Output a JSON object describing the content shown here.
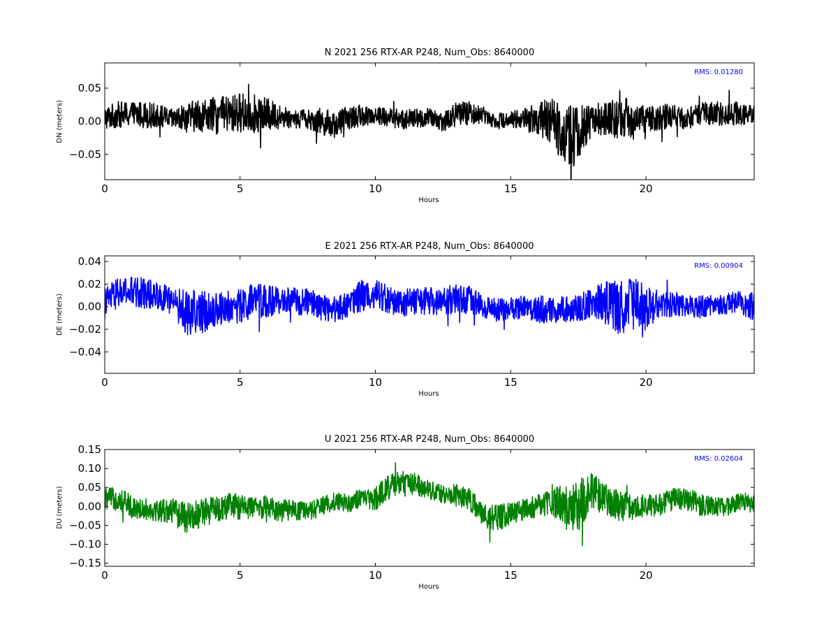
{
  "chart_data": [
    {
      "type": "line",
      "title": "N 2021 256 RTX-AR  P248, Num_Obs: 8640000",
      "xlabel": "Hours",
      "ylabel": "DN (meters)",
      "xlim": [
        0,
        24
      ],
      "ylim": [
        -0.088,
        0.088
      ],
      "xticks": [
        "0",
        "5",
        "10",
        "15",
        "20"
      ],
      "yticks": [
        "0.05",
        "0.00",
        "−0.05"
      ],
      "annotation": "RMS:  0.01280",
      "grid": false,
      "series": [
        {
          "color": "#000000",
          "x": [
            0,
            0.5,
            1,
            1.5,
            2,
            2.5,
            3,
            3.5,
            4,
            4.5,
            5,
            5.5,
            6,
            6.5,
            7,
            7.5,
            8,
            8.5,
            9,
            9.5,
            10,
            10.5,
            11,
            11.5,
            12,
            12.5,
            13,
            13.5,
            14,
            14.5,
            15,
            15.5,
            16,
            16.5,
            17,
            17.25,
            17.5,
            18,
            18.5,
            19,
            19.5,
            20,
            20.5,
            21,
            21.5,
            22,
            22.5,
            23,
            23.5,
            24
          ],
          "y": [
            0.005,
            0.01,
            0.01,
            0.01,
            0.008,
            0.003,
            0.005,
            0.01,
            0.008,
            0.01,
            0.013,
            0.012,
            0.01,
            0.007,
            0.004,
            0.004,
            0.0,
            -0.005,
            0.005,
            0.008,
            0.01,
            0.006,
            0.003,
            0.004,
            0.005,
            0.0,
            0.01,
            0.012,
            0.01,
            0.0,
            0.004,
            0.003,
            0.004,
            0.0,
            -0.02,
            -0.02,
            -0.02,
            0.002,
            0.004,
            0.004,
            0.004,
            0.001,
            0.007,
            0.008,
            0.004,
            0.01,
            0.012,
            0.012,
            0.012,
            0.01
          ],
          "spread": [
            0.018,
            0.02,
            0.02,
            0.02,
            0.018,
            0.015,
            0.022,
            0.025,
            0.028,
            0.028,
            0.03,
            0.03,
            0.025,
            0.018,
            0.015,
            0.015,
            0.02,
            0.02,
            0.018,
            0.015,
            0.015,
            0.015,
            0.015,
            0.015,
            0.015,
            0.015,
            0.02,
            0.018,
            0.012,
            0.012,
            0.012,
            0.018,
            0.025,
            0.035,
            0.045,
            0.05,
            0.045,
            0.025,
            0.025,
            0.03,
            0.032,
            0.02,
            0.02,
            0.018,
            0.016,
            0.018,
            0.018,
            0.018,
            0.018,
            0.015
          ]
        }
      ]
    },
    {
      "type": "line",
      "title": "E 2021 256 RTX-AR  P248, Num_Obs: 8640000",
      "xlabel": "Hours",
      "ylabel": "DE (meters)",
      "xlim": [
        0,
        24
      ],
      "ylim": [
        -0.059,
        0.045
      ],
      "xticks": [
        "0",
        "5",
        "10",
        "15",
        "20"
      ],
      "yticks": [
        "0.04",
        "0.02",
        "0.00",
        "−0.02",
        "−0.04"
      ],
      "annotation": "RMS:  0.00904",
      "grid": false,
      "series": [
        {
          "color": "#0000ff",
          "x": [
            0,
            0.5,
            1,
            1.5,
            2,
            2.5,
            3,
            3.5,
            4,
            4.5,
            5,
            5.5,
            6,
            6.5,
            7,
            7.5,
            8,
            8.5,
            9,
            9.5,
            10,
            10.5,
            11,
            11.5,
            12,
            12.5,
            13,
            13.5,
            14,
            14.5,
            15,
            15.5,
            16,
            16.5,
            17,
            17.5,
            18,
            18.5,
            19,
            19.5,
            20,
            20.5,
            21,
            21.5,
            22,
            22.5,
            23,
            23.5,
            24
          ],
          "y": [
            0.005,
            0.012,
            0.013,
            0.012,
            0.01,
            0.005,
            -0.005,
            -0.005,
            -0.003,
            0.0,
            0.0,
            0.005,
            0.005,
            0.005,
            0.005,
            0.004,
            0.0,
            -0.002,
            0.002,
            0.01,
            0.012,
            0.006,
            0.003,
            0.005,
            0.005,
            0.004,
            0.008,
            0.006,
            0.0,
            -0.003,
            -0.002,
            0.0,
            -0.002,
            -0.003,
            -0.003,
            0.0,
            0.002,
            0.004,
            0.0,
            -0.002,
            0.0,
            0.002,
            0.003,
            0.0,
            0.0,
            0.002,
            0.003,
            0.005,
            -0.002
          ],
          "spread": [
            0.012,
            0.014,
            0.014,
            0.014,
            0.012,
            0.012,
            0.02,
            0.02,
            0.015,
            0.014,
            0.016,
            0.016,
            0.014,
            0.012,
            0.012,
            0.012,
            0.012,
            0.012,
            0.012,
            0.014,
            0.014,
            0.012,
            0.012,
            0.012,
            0.012,
            0.012,
            0.014,
            0.012,
            0.01,
            0.01,
            0.01,
            0.01,
            0.012,
            0.012,
            0.012,
            0.012,
            0.015,
            0.02,
            0.025,
            0.028,
            0.02,
            0.012,
            0.012,
            0.01,
            0.01,
            0.01,
            0.01,
            0.01,
            0.014
          ]
        }
      ]
    },
    {
      "type": "line",
      "title": "U 2021 256 RTX-AR  P248, Num_Obs: 8640000",
      "xlabel": "Hours",
      "ylabel": "DU (meters)",
      "xlim": [
        0,
        24
      ],
      "ylim": [
        -0.158,
        0.15
      ],
      "xticks": [
        "0",
        "5",
        "10",
        "15",
        "20"
      ],
      "yticks": [
        "0.15",
        "0.10",
        "0.05",
        "0.00",
        "−0.05",
        "−0.10",
        "−0.15"
      ],
      "annotation": "RMS:  0.02604",
      "grid": false,
      "series": [
        {
          "color": "#008000",
          "x": [
            0,
            0.5,
            1,
            1.5,
            2,
            2.5,
            3,
            3.5,
            4,
            4.5,
            5,
            5.5,
            6,
            6.5,
            7,
            7.5,
            8,
            8.5,
            9,
            9.5,
            10,
            10.5,
            11,
            11.5,
            12,
            12.5,
            13,
            13.5,
            14,
            14.5,
            15,
            15.5,
            16,
            16.5,
            17,
            17.5,
            18,
            18.5,
            19,
            19.5,
            20,
            20.5,
            21,
            21.5,
            22,
            22.5,
            23,
            23.5,
            24
          ],
          "y": [
            0.02,
            0.02,
            0.0,
            -0.01,
            -0.01,
            -0.01,
            -0.03,
            -0.02,
            -0.01,
            0.0,
            0.0,
            -0.005,
            0.0,
            -0.01,
            -0.01,
            -0.015,
            0.0,
            0.015,
            0.01,
            0.02,
            0.02,
            0.05,
            0.06,
            0.06,
            0.045,
            0.03,
            0.03,
            0.02,
            -0.03,
            -0.03,
            -0.02,
            -0.01,
            0.0,
            0.02,
            0.0,
            0.0,
            0.04,
            0.02,
            0.0,
            0.0,
            0.0,
            0.005,
            0.02,
            0.02,
            0.005,
            0.0,
            0.0,
            0.015,
            0.005
          ],
          "spread": [
            0.03,
            0.03,
            0.03,
            0.025,
            0.03,
            0.035,
            0.04,
            0.04,
            0.035,
            0.035,
            0.035,
            0.03,
            0.03,
            0.03,
            0.025,
            0.025,
            0.025,
            0.025,
            0.025,
            0.025,
            0.03,
            0.035,
            0.035,
            0.03,
            0.025,
            0.025,
            0.03,
            0.03,
            0.035,
            0.035,
            0.03,
            0.03,
            0.03,
            0.04,
            0.06,
            0.07,
            0.05,
            0.04,
            0.04,
            0.035,
            0.03,
            0.03,
            0.03,
            0.03,
            0.03,
            0.025,
            0.025,
            0.025,
            0.025
          ]
        }
      ]
    }
  ]
}
